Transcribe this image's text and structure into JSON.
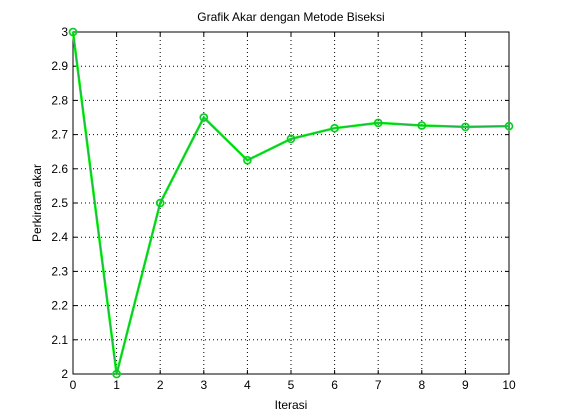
{
  "chart_data": {
    "type": "line",
    "title": "Grafik Akar dengan Metode Biseksi",
    "xlabel": "Iterasi",
    "ylabel": "Perkiraan akar",
    "xlim": [
      0,
      10
    ],
    "ylim": [
      2,
      3
    ],
    "xticks": [
      0,
      1,
      2,
      3,
      4,
      5,
      6,
      7,
      8,
      9,
      10
    ],
    "yticks": [
      2,
      2.1,
      2.2,
      2.3,
      2.4,
      2.5,
      2.6,
      2.7,
      2.8,
      2.9,
      3
    ],
    "grid": true,
    "grid_style": "dotted",
    "marker": "circle",
    "series": [
      {
        "color": "#00ff00",
        "x": [
          0,
          1,
          2,
          3,
          4,
          5,
          6,
          7,
          8,
          9,
          10
        ],
        "values": [
          3,
          2,
          2.5,
          2.75,
          2.625,
          2.6875,
          2.71875,
          2.734375,
          2.7265625,
          2.72265625,
          2.724609375
        ]
      },
      {
        "color": "#1fb44a",
        "x": [
          0,
          1,
          2,
          3,
          4,
          5,
          6,
          7,
          8,
          9,
          10
        ],
        "values": [
          3,
          2,
          2.5,
          2.75,
          2.625,
          2.6875,
          2.71875,
          2.734375,
          2.7265625,
          2.72265625,
          2.724609375
        ]
      }
    ]
  }
}
